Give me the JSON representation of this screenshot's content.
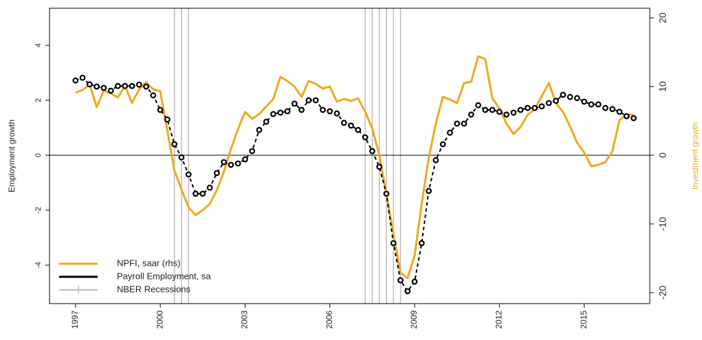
{
  "chart_data": {
    "type": "line",
    "ylabel": "Employment growth",
    "y2label": "Investment growth",
    "x": [
      1997,
      1997.25,
      1997.5,
      1997.75,
      1998,
      1998.25,
      1998.5,
      1998.75,
      1999,
      1999.25,
      1999.5,
      1999.75,
      2000,
      2000.25,
      2000.5,
      2000.75,
      2001,
      2001.25,
      2001.5,
      2001.75,
      2002,
      2002.25,
      2002.5,
      2002.75,
      2003,
      2003.25,
      2003.5,
      2003.75,
      2004,
      2004.25,
      2004.5,
      2004.75,
      2005,
      2005.25,
      2005.5,
      2005.75,
      2006,
      2006.25,
      2006.5,
      2006.75,
      2007,
      2007.25,
      2007.5,
      2007.75,
      2008,
      2008.25,
      2008.5,
      2008.75,
      2009,
      2009.25,
      2009.5,
      2009.75,
      2010,
      2010.25,
      2010.5,
      2010.75,
      2011,
      2011.25,
      2011.5,
      2011.75,
      2012,
      2012.25,
      2012.5,
      2012.75,
      2013,
      2013.25,
      2013.5,
      2013.75,
      2014,
      2014.25,
      2014.5,
      2014.75,
      2015,
      2015.25,
      2015.5,
      2015.75,
      2016,
      2016.25,
      2016.5,
      2016.75
    ],
    "series": [
      {
        "name": "NPFI, saar (rhs)",
        "color": "#f0a81c",
        "axis": "y2",
        "values": [
          9.1,
          9.5,
          10.3,
          7.0,
          9.4,
          9.0,
          8.4,
          10.1,
          7.6,
          9.6,
          10.6,
          9.6,
          9.3,
          3.6,
          -2.2,
          -5.0,
          -7.6,
          -8.7,
          -8.0,
          -7.1,
          -5.1,
          -2.4,
          0.9,
          3.8,
          6.3,
          5.3,
          6.0,
          7.1,
          8.2,
          11.4,
          10.8,
          10.0,
          8.5,
          10.8,
          10.4,
          9.7,
          10.0,
          7.8,
          8.2,
          7.9,
          8.3,
          6.3,
          3.9,
          0.1,
          -5.6,
          -11.4,
          -17.1,
          -17.9,
          -14.6,
          -7.1,
          -0.4,
          4.6,
          8.5,
          8.1,
          7.6,
          10.5,
          10.7,
          14.4,
          14.0,
          8.3,
          6.8,
          4.6,
          3.1,
          4.1,
          5.9,
          6.7,
          8.6,
          10.5,
          7.6,
          6.3,
          4.2,
          1.8,
          0.4,
          -1.6,
          -1.4,
          -1.0,
          0.6,
          5.1,
          5.9,
          5.9
        ]
      },
      {
        "name": "Payroll Employment, sa",
        "color": "#000000",
        "values": [
          2.72,
          2.82,
          2.58,
          2.5,
          2.45,
          2.35,
          2.52,
          2.52,
          2.52,
          2.57,
          2.5,
          2.18,
          1.65,
          1.3,
          0.4,
          -0.08,
          -0.7,
          -1.4,
          -1.4,
          -1.18,
          -0.65,
          -0.25,
          -0.35,
          -0.3,
          -0.15,
          0.15,
          0.92,
          1.22,
          1.5,
          1.55,
          1.6,
          1.88,
          1.65,
          2.0,
          2.0,
          1.65,
          1.6,
          1.52,
          1.18,
          1.08,
          0.92,
          0.65,
          0.15,
          -0.42,
          -1.4,
          -3.2,
          -4.55,
          -4.95,
          -4.6,
          -3.2,
          -1.3,
          -0.18,
          0.4,
          0.82,
          1.15,
          1.15,
          1.48,
          1.82,
          1.65,
          1.65,
          1.58,
          1.48,
          1.55,
          1.65,
          1.72,
          1.72,
          1.78,
          1.9,
          1.98,
          2.2,
          2.12,
          2.08,
          1.95,
          1.85,
          1.85,
          1.72,
          1.68,
          1.58,
          1.42,
          1.35
        ]
      }
    ],
    "recessions": {
      "name": "NBER Recessions",
      "color": "#bbbbbb",
      "x": [
        2000.5,
        2000.75,
        2001,
        2007.25,
        2007.5,
        2007.75,
        2008,
        2008.25,
        2008.5
      ]
    },
    "xlim": [
      1996.08,
      2017.32
    ],
    "xticks": [
      1997,
      2000,
      2003,
      2006,
      2009,
      2012,
      2015
    ],
    "ylim": [
      -5.4,
      5.35
    ],
    "yticks": [
      -4,
      -2,
      0,
      2,
      4
    ],
    "y2lim": [
      -21.6,
      21.4
    ],
    "y2ticks": [
      -20,
      -10,
      0,
      10,
      20
    ],
    "legend": "bottom-left"
  }
}
